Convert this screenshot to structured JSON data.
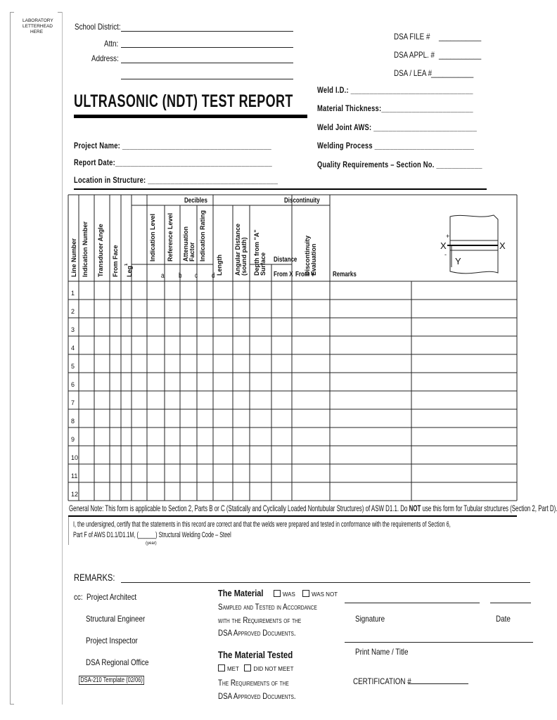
{
  "letterhead": "LABORATORY LETTERHEAD HERE",
  "header": {
    "school_district_label": "School District:",
    "attn_label": "Attn:",
    "address_label": "Address:",
    "dsa_file_label": "DSA FILE  #",
    "dsa_file_blank": "___________",
    "dsa_appl_label": "DSA APPL. #",
    "dsa_appl_blank": "___________",
    "dsa_lea_label": "DSA / LEA #",
    "dsa_lea_blank": "___________"
  },
  "title": "ULTRASONIC (NDT) TEST REPORT",
  "project": {
    "project_name_label": "Project Name:",
    "project_name_blank": "_______________________________________",
    "report_date_label": "Report Date:",
    "report_date_blank": "_________________________________________",
    "location_label": "Location in Structure:",
    "location_blank": "__________________________________"
  },
  "weld": {
    "weld_id_label": "Weld I.D.:",
    "weld_id_blank": "________________________________",
    "material_thickness_label": "Material Thickness:",
    "material_thickness_blank": "________________________",
    "weld_joint_label": "Weld Joint AWS:",
    "weld_joint_blank": "___________________________",
    "welding_process_label": "Welding Process",
    "welding_process_blank": "__________________________",
    "quality_label": "Quality Requirements – Section No.",
    "quality_blank": "____________"
  },
  "table": {
    "group_decibels": "Decibles",
    "group_discontinuity": "Discontinuity",
    "col_line_number": "Line Number",
    "col_indication_number": "Indication Number",
    "col_transducer_angle": "Transducer Angle",
    "col_from_face": "From Face",
    "col_leg": "Leg",
    "col_leg_sup": "1",
    "col_indication_level": "Indication Level",
    "col_reference_level": "Reference Level",
    "col_attenuation_factor": "Attenuation Factor",
    "col_indication_rating": "Indication Rating",
    "sub_a": "a",
    "sub_b": "b",
    "sub_c": "c",
    "sub_d": "d",
    "col_length": "Length",
    "col_angular_distance": "Angular Distance (sound path)",
    "col_depth": "Depth from \"A\" Surface",
    "distance": "Distance",
    "from_x": "From X",
    "from_y": "From Y",
    "col_evaluation": "Discontinuity Evaluation",
    "col_remarks": "Remarks",
    "diagram": {
      "x_left": "X",
      "x_right": "X",
      "plus": "+",
      "minus": "-",
      "y": "Y"
    },
    "rows": [
      "1",
      "2",
      "3",
      "4",
      "5",
      "6",
      "7",
      "8",
      "9",
      "10",
      "11",
      "12"
    ]
  },
  "general_note": {
    "prefix": "General Note: This form is applicable to Section 2, Parts B or C (Statically and Cyclically Loaded Nontubular Structures) of ASW D1.1. Do ",
    "bold": "NOT",
    "suffix": " use this form for Tubular structures (Section 2, Part D)."
  },
  "certify": {
    "line1": "I, the undersigned, certify that the statements in this record are correct and that the welds were prepared and tested in conformance with the requirements of Section 6,",
    "line2": "Part F of AWS D1.1/D1.1M, (______) Structural Welding Code – Steel",
    "year": "(year)"
  },
  "remarks_label": "REMARKS:",
  "cc": {
    "prefix": "cc:",
    "items": [
      "Project Architect",
      "Structural Engineer",
      "Project Inspector",
      "DSA Regional Office"
    ],
    "template_id": "DSA-210 Template (02/06)"
  },
  "material": {
    "heading1": "The Material",
    "was": "WAS",
    "was_not": "WAS NOT",
    "text1": [
      "Sampled and Tested in  Accordance",
      "with  the Requirements of the",
      "DSA Approved Documents."
    ],
    "heading2": "The Material Tested",
    "met": "MET",
    "did_not_meet": "DID NOT MEET",
    "text2": [
      "The Requirements of the",
      "DSA Approved Documents."
    ]
  },
  "signature": {
    "signature_label": "Signature",
    "date_label": "Date",
    "print_name_label": "Print Name / Title",
    "certification_label": "CERTIFICATION #"
  }
}
